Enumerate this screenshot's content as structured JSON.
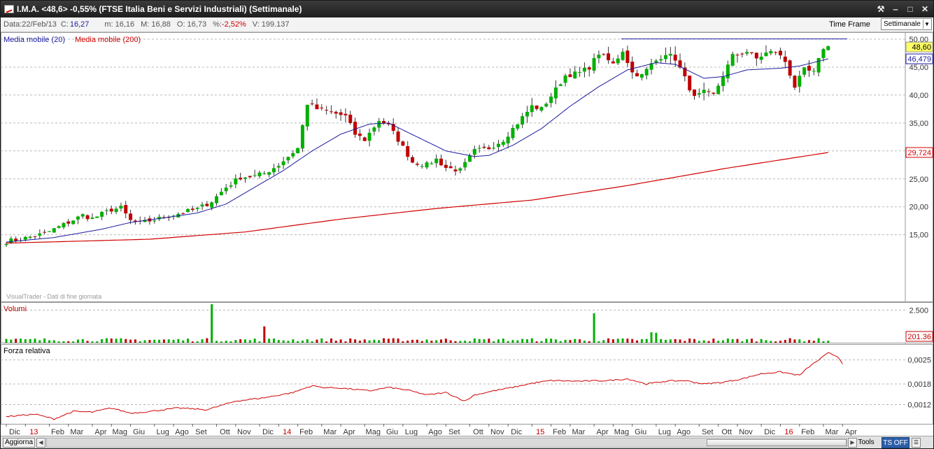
{
  "window": {
    "title": "I.M.A. <48,6> -0,55%  (FTSE Italia Beni e Servizi Industriali)  (Settimanale)",
    "buttons": [
      "tools-icon",
      "minimize-icon",
      "maximize-icon",
      "close-icon"
    ]
  },
  "infobar": {
    "data_label": "Data:",
    "data_value": "22/Feb/13",
    "close_label": "C:",
    "close_value": "16,27",
    "min_label": "m:",
    "min_value": "16,16",
    "max_label": "M:",
    "max_value": "16,88",
    "open_label": "O:",
    "open_value": "16,73",
    "pct_label": "%:",
    "pct_value": "-2,52%",
    "vol_label": "V:",
    "vol_value": "199.137",
    "timeframe_label": "Time Frame",
    "timeframe_value": "Settimanale"
  },
  "colors": {
    "up": "#00b000",
    "down": "#c00000",
    "ma20": "#1c1c9e",
    "ma200": "#d00000",
    "grid": "#b8b8b8",
    "last_price_bg": "#ffff66"
  },
  "chart_data": [
    {
      "type": "candlestick",
      "panel": "price",
      "legend": [
        "Media mobile (20)",
        "Media mobile (200)"
      ],
      "watermark": "VisualTrader - Dati di fine giornata",
      "y_ticks": [
        "50,00",
        "45,00",
        "40,00",
        "35,00",
        "30,00",
        "25,00",
        "20,00",
        "15,00"
      ],
      "ylim": [
        13.5,
        50.5
      ],
      "last_price": "48,60",
      "ma20_last": "46,479",
      "ma200_last": "29,724",
      "x_ticks": [
        "Dic",
        "13",
        "Feb",
        "Mar",
        "Apr",
        "Mag",
        "Giu",
        "Lug",
        "Ago",
        "Set",
        "Ott",
        "Nov",
        "Dic",
        "14",
        "Feb",
        "Mar",
        "Apr",
        "Mag",
        "Giu",
        "Lug",
        "Ago",
        "Set",
        "Ott",
        "Nov",
        "Dic",
        "15",
        "Feb",
        "Mar",
        "Apr",
        "Mag",
        "Giu",
        "Lug",
        "Ago",
        "Set",
        "Ott",
        "Nov",
        "Dic",
        "16",
        "Feb",
        "Mar",
        "Apr"
      ],
      "x_tick_weeks": [
        0,
        4,
        9,
        13,
        18,
        22,
        26,
        31,
        35,
        39,
        44,
        48,
        53,
        57,
        61,
        66,
        70,
        75,
        79,
        83,
        88,
        92,
        97,
        101,
        105,
        110,
        114,
        118,
        123,
        127,
        131,
        136,
        140,
        145,
        149,
        153,
        158,
        162,
        166,
        171,
        175
      ],
      "close_anchors": [
        [
          0,
          13.8
        ],
        [
          4,
          14.4
        ],
        [
          8,
          15.2
        ],
        [
          12,
          16.8
        ],
        [
          16,
          18.5
        ],
        [
          18,
          17.9
        ],
        [
          22,
          19.5
        ],
        [
          24,
          19.8
        ],
        [
          26,
          17.5
        ],
        [
          28,
          17.1
        ],
        [
          32,
          17.9
        ],
        [
          36,
          18.8
        ],
        [
          40,
          19.6
        ],
        [
          43,
          21.0
        ],
        [
          46,
          23.5
        ],
        [
          49,
          25.3
        ],
        [
          52,
          25.5
        ],
        [
          54,
          26.0
        ],
        [
          57,
          27.5
        ],
        [
          61,
          30.5
        ],
        [
          63,
          38.5
        ],
        [
          65,
          37.5
        ],
        [
          68,
          36.9
        ],
        [
          71,
          36.2
        ],
        [
          73,
          33.0
        ],
        [
          75,
          32.0
        ],
        [
          78,
          35.5
        ],
        [
          80,
          34.5
        ],
        [
          82,
          32.0
        ],
        [
          85,
          28.0
        ],
        [
          88,
          27.5
        ],
        [
          90,
          28.5
        ],
        [
          92,
          27.0
        ],
        [
          95,
          26.5
        ],
        [
          98,
          30.0
        ],
        [
          101,
          30.5
        ],
        [
          104,
          32.0
        ],
        [
          107,
          35.0
        ],
        [
          110,
          38.0
        ],
        [
          112,
          37.5
        ],
        [
          115,
          41.0
        ],
        [
          117,
          43.5
        ],
        [
          120,
          44.0
        ],
        [
          122,
          45.0
        ],
        [
          124,
          47.5
        ],
        [
          127,
          45.5
        ],
        [
          129,
          48.0
        ],
        [
          131,
          44.0
        ],
        [
          133,
          43.5
        ],
        [
          135,
          45.5
        ],
        [
          138,
          47.5
        ],
        [
          140,
          46.5
        ],
        [
          142,
          43.0
        ],
        [
          144,
          39.5
        ],
        [
          146,
          40.5
        ],
        [
          148,
          40.0
        ],
        [
          150,
          43.5
        ],
        [
          152,
          47.0
        ],
        [
          155,
          47.8
        ],
        [
          157,
          46.5
        ],
        [
          159,
          47.5
        ],
        [
          161,
          47.8
        ],
        [
          163,
          46.0
        ],
        [
          165,
          41.5
        ],
        [
          167,
          44.5
        ],
        [
          169,
          44.0
        ],
        [
          171,
          48.5
        ],
        [
          172,
          48.6
        ]
      ],
      "ma20_anchors": [
        [
          0,
          13.7
        ],
        [
          10,
          14.5
        ],
        [
          20,
          16.0
        ],
        [
          26,
          17.2
        ],
        [
          32,
          17.9
        ],
        [
          40,
          18.9
        ],
        [
          46,
          20.5
        ],
        [
          52,
          23.5
        ],
        [
          58,
          26.5
        ],
        [
          64,
          30.0
        ],
        [
          70,
          33.0
        ],
        [
          76,
          34.8
        ],
        [
          80,
          35.0
        ],
        [
          86,
          32.5
        ],
        [
          92,
          30.0
        ],
        [
          98,
          29.0
        ],
        [
          101,
          29.2
        ],
        [
          106,
          31.0
        ],
        [
          112,
          34.0
        ],
        [
          118,
          38.0
        ],
        [
          124,
          41.5
        ],
        [
          130,
          44.5
        ],
        [
          136,
          45.8
        ],
        [
          140,
          45.5
        ],
        [
          146,
          43.0
        ],
        [
          150,
          43.3
        ],
        [
          155,
          44.5
        ],
        [
          162,
          44.8
        ],
        [
          166,
          45.2
        ],
        [
          172,
          46.479
        ]
      ],
      "ma200_anchors": [
        [
          0,
          13.5
        ],
        [
          30,
          14.2
        ],
        [
          50,
          15.5
        ],
        [
          70,
          17.8
        ],
        [
          90,
          19.7
        ],
        [
          110,
          21.2
        ],
        [
          130,
          23.8
        ],
        [
          150,
          26.8
        ],
        [
          172,
          29.724
        ]
      ]
    },
    {
      "type": "bar",
      "panel": "volume",
      "title": "Volumi",
      "y_ticks": [
        "2.500"
      ],
      "last_value": "201.36",
      "ylim": [
        0,
        3000
      ],
      "spikes": [
        [
          43,
          2950
        ],
        [
          54,
          1250
        ],
        [
          123,
          2250
        ],
        [
          135,
          800
        ],
        [
          136,
          760
        ]
      ]
    },
    {
      "type": "line",
      "panel": "relative_strength",
      "title": "Forza relativa",
      "y_ticks": [
        "0,0025",
        "0,0018",
        "0,0012"
      ],
      "ylim": [
        0.0007,
        0.0029
      ],
      "rs_anchors": [
        [
          0,
          0.00085
        ],
        [
          6,
          0.00092
        ],
        [
          10,
          0.00078
        ],
        [
          14,
          0.001
        ],
        [
          18,
          0.00098
        ],
        [
          22,
          0.0011
        ],
        [
          26,
          0.00095
        ],
        [
          30,
          0.001
        ],
        [
          36,
          0.0011
        ],
        [
          42,
          0.00105
        ],
        [
          48,
          0.0013
        ],
        [
          54,
          0.0014
        ],
        [
          60,
          0.00155
        ],
        [
          64,
          0.00175
        ],
        [
          66,
          0.0017
        ],
        [
          70,
          0.00168
        ],
        [
          76,
          0.0016
        ],
        [
          80,
          0.0017
        ],
        [
          84,
          0.00162
        ],
        [
          88,
          0.00148
        ],
        [
          92,
          0.00155
        ],
        [
          96,
          0.0013
        ],
        [
          98,
          0.00148
        ],
        [
          102,
          0.0016
        ],
        [
          106,
          0.0017
        ],
        [
          110,
          0.00182
        ],
        [
          114,
          0.0019
        ],
        [
          120,
          0.00188
        ],
        [
          126,
          0.0019
        ],
        [
          130,
          0.00195
        ],
        [
          134,
          0.0018
        ],
        [
          138,
          0.00188
        ],
        [
          142,
          0.0019
        ],
        [
          146,
          0.0018
        ],
        [
          150,
          0.00185
        ],
        [
          154,
          0.00195
        ],
        [
          158,
          0.0021
        ],
        [
          162,
          0.00215
        ],
        [
          164,
          0.0021
        ],
        [
          166,
          0.00205
        ],
        [
          168,
          0.0023
        ],
        [
          170,
          0.0025
        ],
        [
          172,
          0.0027
        ],
        [
          174,
          0.0026
        ],
        [
          175,
          0.0024
        ]
      ]
    }
  ],
  "bottombar": {
    "refresh_label": "Aggiorna",
    "tools_label": "Tools",
    "tsoff_label": "TS OFF"
  }
}
